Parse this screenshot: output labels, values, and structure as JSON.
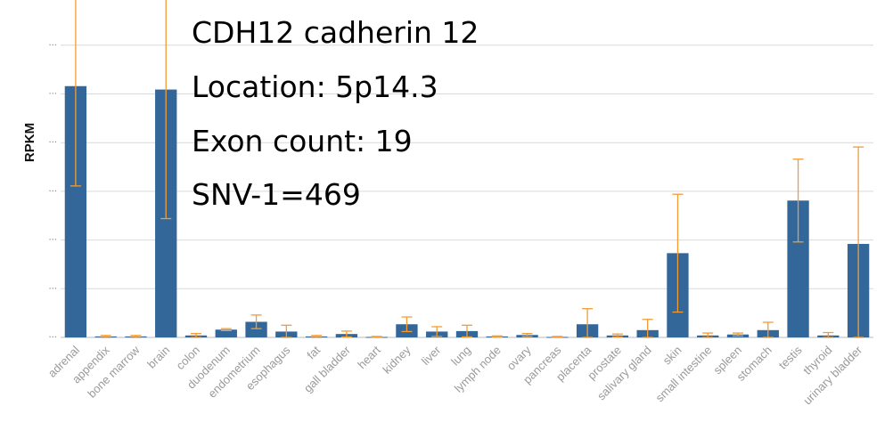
{
  "chart_data": {
    "type": "bar",
    "title": "",
    "xlabel": "",
    "ylabel": "RPKM",
    "ylim": [
      0,
      7
    ],
    "y_tick_labels": [
      "...",
      "...",
      "...",
      "...",
      "...",
      "...",
      "...",
      "..."
    ],
    "grid": true,
    "legend": "none",
    "bar_color": "#336699",
    "error_color": "#F39C34",
    "grid_color": "#d9d9d9",
    "categories": [
      "adrenal",
      "appendix",
      "bone marrow",
      "brain",
      "colon",
      "duodenum",
      "endometrium",
      "esophagus",
      "fat",
      "gall bladder",
      "heart",
      "kidney",
      "liver",
      "lung",
      "lymph node",
      "ovary",
      "pancreas",
      "placenta",
      "prostate",
      "salivary gland",
      "skin",
      "small intestine",
      "spleen",
      "stomach",
      "testis",
      "thyroid",
      "urinary bladder"
    ],
    "values": [
      5.16,
      0.02,
      0.02,
      5.09,
      0.04,
      0.16,
      0.32,
      0.12,
      0.02,
      0.07,
      0.01,
      0.27,
      0.12,
      0.13,
      0.02,
      0.05,
      0.01,
      0.27,
      0.04,
      0.15,
      1.73,
      0.04,
      0.06,
      0.15,
      2.81,
      0.04,
      1.92
    ],
    "errors": [
      2.05,
      0.02,
      0.02,
      2.65,
      0.04,
      0.02,
      0.14,
      0.13,
      0.02,
      0.06,
      0.01,
      0.15,
      0.1,
      0.12,
      0.01,
      0.03,
      0.01,
      0.32,
      0.03,
      0.22,
      1.21,
      0.05,
      0.03,
      0.16,
      0.85,
      0.06,
      1.99
    ]
  },
  "annotation": {
    "lines": [
      "CDH12 cadherin 12",
      "Location: 5p14.3",
      "Exon count: 19",
      "SNV-1=469"
    ]
  }
}
